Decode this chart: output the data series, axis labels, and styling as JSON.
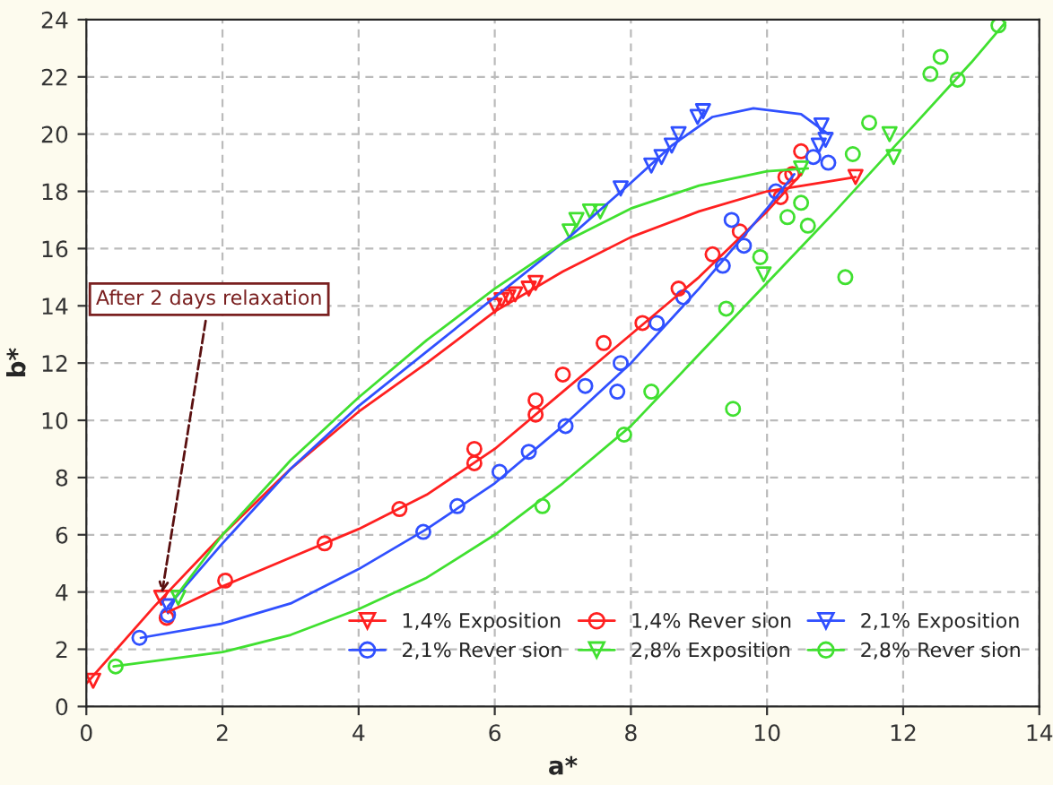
{
  "chart_data": {
    "type": "scatter",
    "xlabel": "a*",
    "ylabel": "b*",
    "xlim": [
      0,
      14
    ],
    "ylim": [
      0,
      24
    ],
    "xticks": [
      0,
      2,
      4,
      6,
      8,
      10,
      12,
      14
    ],
    "yticks": [
      0,
      2,
      4,
      6,
      8,
      10,
      12,
      14,
      16,
      18,
      20,
      22,
      24
    ],
    "grid": true,
    "legend": "bottom right",
    "annotations": [
      {
        "text": "After 2 days relaxation",
        "x": 1.1,
        "y": 3.8
      }
    ],
    "series": [
      {
        "name": "1,4% Exposition",
        "color": "#ff2020",
        "marker": "triangle",
        "x": [
          0.1,
          1.1,
          6.0,
          6.1,
          6.2,
          6.3,
          6.5,
          6.6,
          11.3
        ],
        "values": [
          0.9,
          3.8,
          14.0,
          14.2,
          14.3,
          14.4,
          14.6,
          14.8,
          18.5
        ]
      },
      {
        "type": "line",
        "color": "#ff2020",
        "marker": "none",
        "x": [
          0,
          1,
          2,
          3,
          4,
          5,
          6,
          7,
          8,
          9,
          10,
          11.3
        ],
        "values": [
          0.8,
          3.5,
          6.0,
          8.3,
          10.3,
          12.0,
          13.8,
          15.2,
          16.4,
          17.3,
          18.0,
          18.5
        ]
      },
      {
        "name": "1,4% Rever sion",
        "color": "#ff2020",
        "marker": "circle",
        "x": [
          1.18,
          2.04,
          3.5,
          4.6,
          5.7,
          5.7,
          6.6,
          6.6,
          7.0,
          7.6,
          8.17,
          8.7,
          9.2,
          9.6,
          10.2,
          10.27,
          10.37,
          10.5
        ],
        "values": [
          3.1,
          4.4,
          5.7,
          6.9,
          9.0,
          8.5,
          10.7,
          10.2,
          11.6,
          12.7,
          13.4,
          14.6,
          15.8,
          16.6,
          17.8,
          18.5,
          18.6,
          19.4
        ]
      },
      {
        "type": "line",
        "color": "#ff2020",
        "marker": "none",
        "x": [
          1.2,
          2,
          3,
          4,
          5,
          6,
          7,
          8,
          9,
          10,
          10.5
        ],
        "values": [
          3.3,
          4.2,
          5.2,
          6.2,
          7.4,
          9.0,
          11.0,
          13.0,
          15.0,
          17.3,
          18.6
        ]
      },
      {
        "name": "2,1% Exposition",
        "color": "#3050ff",
        "marker": "triangle",
        "x": [
          1.2,
          7.85,
          8.3,
          8.45,
          8.6,
          8.7,
          8.98,
          9.06,
          10.76,
          10.8,
          10.86
        ],
        "values": [
          3.5,
          18.1,
          18.9,
          19.2,
          19.6,
          20.0,
          20.6,
          20.8,
          19.6,
          20.3,
          19.8
        ]
      },
      {
        "type": "line",
        "color": "#3050ff",
        "marker": "none",
        "x": [
          1.2,
          2,
          3,
          4,
          5,
          6,
          7,
          8,
          8.6,
          9.2,
          9.8,
          10.5,
          10.9
        ],
        "values": [
          3.5,
          5.7,
          8.3,
          10.5,
          12.4,
          14.3,
          16.2,
          18.3,
          19.6,
          20.6,
          20.9,
          20.7,
          20.0
        ]
      },
      {
        "name": "2,1% Rever sion",
        "color": "#3050ff",
        "marker": "circle",
        "x": [
          0.78,
          1.2,
          4.95,
          5.45,
          6.07,
          6.5,
          7.04,
          7.33,
          7.8,
          7.85,
          8.38,
          8.77,
          9.35,
          9.66,
          9.48,
          10.13,
          10.68,
          10.9
        ],
        "values": [
          2.4,
          3.2,
          6.1,
          7.0,
          8.2,
          8.9,
          9.8,
          11.2,
          11.0,
          12.0,
          13.4,
          14.3,
          15.4,
          16.1,
          17.0,
          18.0,
          19.2,
          19.0
        ]
      },
      {
        "type": "line",
        "color": "#3050ff",
        "marker": "none",
        "x": [
          0.8,
          2,
          3,
          4,
          5,
          6,
          7,
          8,
          9,
          10,
          10.4
        ],
        "values": [
          2.4,
          2.9,
          3.6,
          4.8,
          6.2,
          7.8,
          9.8,
          12.0,
          14.6,
          17.4,
          18.6
        ]
      },
      {
        "name": "2,8% Exposition",
        "color": "#40e030",
        "marker": "triangle",
        "x": [
          1.35,
          7.1,
          7.2,
          7.4,
          7.55,
          9.95,
          10.5,
          11.8,
          11.86
        ],
        "values": [
          3.8,
          16.6,
          17.0,
          17.3,
          17.3,
          15.1,
          18.8,
          20.0,
          19.2
        ]
      },
      {
        "type": "line",
        "color": "#40e030",
        "marker": "none",
        "x": [
          1.3,
          2,
          3,
          4,
          5,
          6,
          7,
          8,
          9,
          10,
          10.6
        ],
        "values": [
          3.8,
          6.0,
          8.6,
          10.8,
          12.8,
          14.6,
          16.2,
          17.4,
          18.2,
          18.7,
          18.8
        ]
      },
      {
        "name": "2,8% Rever sion",
        "color": "#40e030",
        "marker": "circle",
        "x": [
          0.43,
          6.7,
          7.9,
          8.3,
          9.5,
          9.4,
          9.9,
          10.3,
          10.6,
          10.5,
          11.15,
          11.26,
          11.5,
          12.4,
          12.55,
          12.8,
          13.4
        ],
        "values": [
          1.4,
          7.0,
          9.5,
          11.0,
          10.4,
          13.9,
          15.7,
          17.1,
          16.8,
          17.6,
          15.0,
          19.3,
          20.4,
          22.1,
          22.7,
          21.9,
          23.8
        ]
      },
      {
        "type": "line",
        "color": "#40e030",
        "marker": "none",
        "x": [
          0.4,
          2,
          3,
          4,
          5,
          6,
          7,
          8,
          9,
          10,
          11,
          12,
          13,
          13.5
        ],
        "values": [
          1.4,
          1.9,
          2.5,
          3.4,
          4.5,
          6.0,
          7.8,
          9.8,
          12.3,
          14.8,
          17.3,
          19.9,
          22.5,
          23.9
        ]
      }
    ]
  }
}
